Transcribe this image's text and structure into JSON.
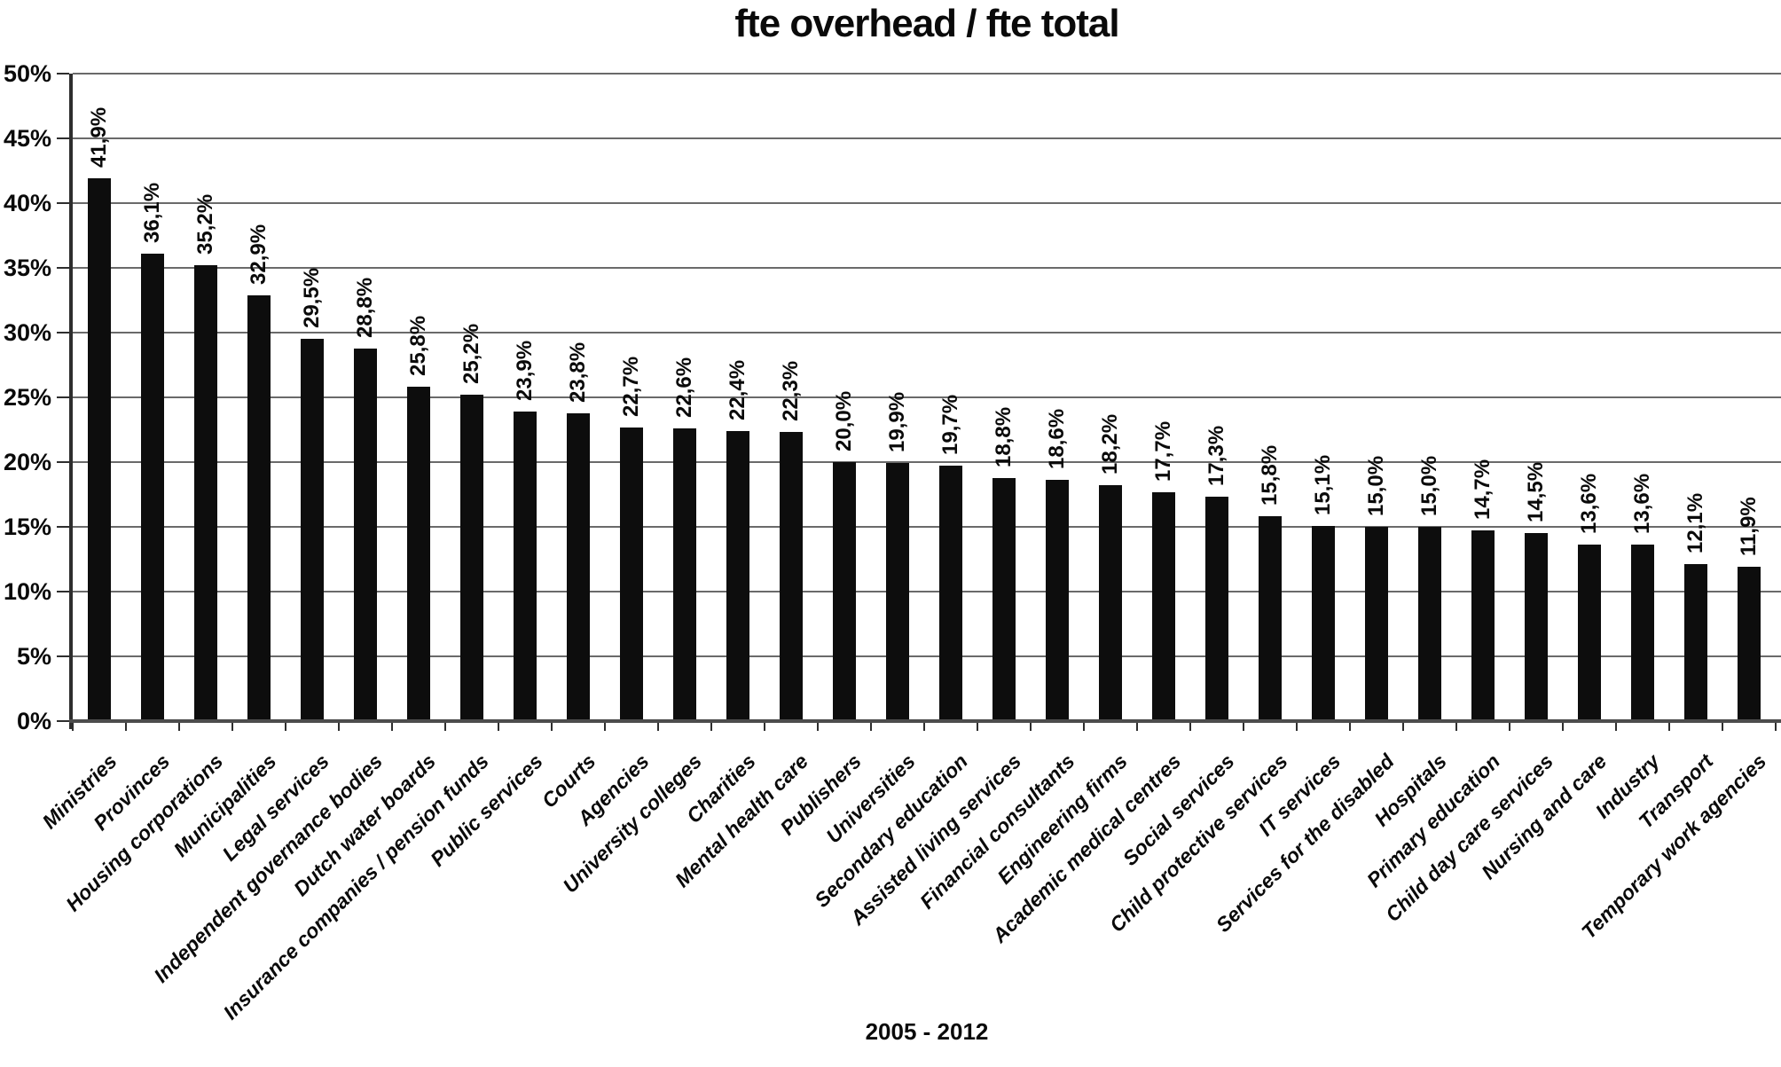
{
  "title": "fte overhead / fte total",
  "footer": {
    "period_label": "2005 - 2012"
  },
  "colors": {
    "bar": "#0d0d0d",
    "gridline": "#6a6a6a",
    "zero_line": "#4c4c4c",
    "axis": "#2e2e2e",
    "text": "#0a0a0a",
    "background": "#ffffff"
  },
  "chart_data": {
    "type": "bar",
    "title": "fte overhead / fte total",
    "xlabel": "2005 - 2012",
    "ylabel": "",
    "ylim": [
      0,
      50
    ],
    "y_tick_step": 5,
    "y_tick_values": [
      0,
      5,
      10,
      15,
      20,
      25,
      30,
      35,
      40,
      45,
      50
    ],
    "y_tick_labels": [
      "0%",
      "5%",
      "10%",
      "15%",
      "20%",
      "25%",
      "30%",
      "35%",
      "40%",
      "45%",
      "50%"
    ],
    "grid": "horizontal-only",
    "legend": "none",
    "bar_orientation": "vertical",
    "value_label_rotation": 90,
    "category_label_rotation": 45,
    "categories": [
      "Ministries",
      "Provinces",
      "Housing corporations",
      "Municipalities",
      "Legal services",
      "Independent governance bodies",
      "Dutch water boards",
      "Insurance companies / pension funds",
      "Public services",
      "Courts",
      "Agencies",
      "University colleges",
      "Charities",
      "Mental health care",
      "Publishers",
      "Universities",
      "Secondary education",
      "Assisted living services",
      "Financial consultants",
      "Engineering firms",
      "Academic medical centres",
      "Social services",
      "Child protective services",
      "IT services",
      "Services for the disabled",
      "Hospitals",
      "Primary education",
      "Child day care services",
      "Nursing and care",
      "Industry",
      "Transport",
      "Temporary work agencies"
    ],
    "values": [
      41.9,
      36.1,
      35.2,
      32.9,
      29.5,
      28.8,
      25.8,
      25.2,
      23.9,
      23.8,
      22.7,
      22.6,
      22.4,
      22.3,
      20.0,
      19.9,
      19.7,
      18.8,
      18.6,
      18.2,
      17.7,
      17.3,
      15.8,
      15.1,
      15.0,
      15.0,
      14.7,
      14.5,
      13.6,
      13.6,
      12.1,
      11.9
    ],
    "value_labels": [
      "41,9%",
      "36,1%",
      "35,2%",
      "32,9%",
      "29,5%",
      "28,8%",
      "25,8%",
      "25,2%",
      "23,9%",
      "23,8%",
      "22,7%",
      "22,6%",
      "22,4%",
      "22,3%",
      "20,0%",
      "19,9%",
      "19,7%",
      "18,8%",
      "18,6%",
      "18,2%",
      "17,7%",
      "17,3%",
      "15,8%",
      "15,1%",
      "15,0%",
      "15,0%",
      "14,7%",
      "14,5%",
      "13,6%",
      "13,6%",
      "12,1%",
      "11,9%"
    ]
  }
}
